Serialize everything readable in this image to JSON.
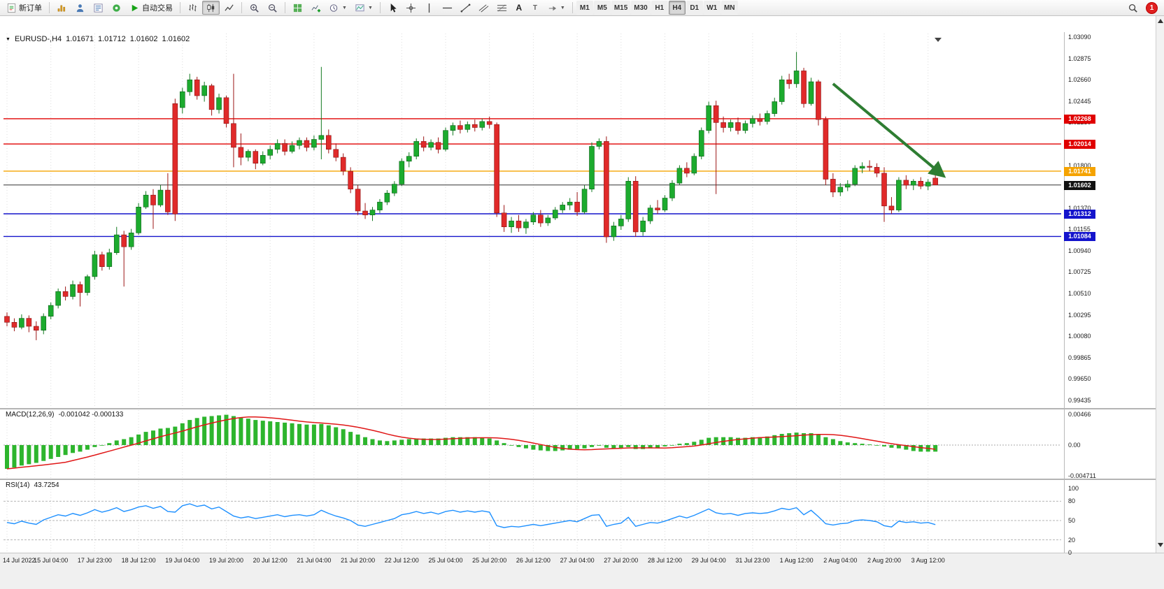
{
  "toolbar": {
    "new_order_label": "新订单",
    "autotrade_label": "自动交易",
    "text_tool_glyph": "A",
    "label_tool_glyph": "T",
    "notification_count": "1",
    "timeframes": [
      "M1",
      "M5",
      "M15",
      "M30",
      "H1",
      "H4",
      "D1",
      "W1",
      "MN"
    ],
    "active_timeframe": "H4"
  },
  "chart_header": {
    "symbol_period": "EURUSD-,H4",
    "open": "1.01671",
    "high": "1.01712",
    "low": "1.01602",
    "close": "1.01602"
  },
  "indicators": {
    "macd_name": "MACD(12,26,9)",
    "macd_values": "-0.001042 -0.000133",
    "rsi_name": "RSI(14)",
    "rsi_value": "43.7254"
  },
  "chart_data": {
    "type": "candlestick",
    "symbol": "EURUSD",
    "timeframe": "H4",
    "price_axis": {
      "max": 1.0309,
      "min": 0.99435,
      "ticks": [
        "1.03090",
        "1.02875",
        "1.02660",
        "1.02445",
        "1.02230",
        "1.02015",
        "1.01800",
        "1.01585",
        "1.01370",
        "1.01155",
        "1.00940",
        "1.00725",
        "1.00510",
        "1.00295",
        "1.00080",
        "0.99865",
        "0.99650",
        "0.99435"
      ]
    },
    "hlines": [
      {
        "price": 1.02268,
        "label": "1.02268",
        "color": "#e00000"
      },
      {
        "price": 1.02014,
        "label": "1.02014",
        "color": "#e00000"
      },
      {
        "price": 1.01741,
        "label": "1.01741",
        "color": "#f5a300"
      },
      {
        "price": 1.01312,
        "label": "1.01312",
        "color": "#1414cc"
      },
      {
        "price": 1.01084,
        "label": "1.01084",
        "color": "#1414cc"
      }
    ],
    "current_price": {
      "price": 1.01602,
      "label": "1.01602",
      "color": "#111111"
    },
    "time_labels": [
      "14 Jul 2022",
      "15 Jul 04:00",
      "17 Jul 23:00",
      "18 Jul 12:00",
      "19 Jul 04:00",
      "19 Jul 20:00",
      "20 Jul 12:00",
      "21 Jul 04:00",
      "21 Jul 20:00",
      "22 Jul 12:00",
      "25 Jul 04:00",
      "25 Jul 20:00",
      "26 Jul 12:00",
      "27 Jul 04:00",
      "27 Jul 20:00",
      "28 Jul 12:00",
      "29 Jul 04:00",
      "31 Jul 23:00",
      "1 Aug 12:00",
      "2 Aug 04:00",
      "2 Aug 20:00",
      "3 Aug 12:00"
    ],
    "candles": [
      [
        1.0028,
        1.0032,
        1.0018,
        1.0022
      ],
      [
        1.0022,
        1.0026,
        1.0013,
        1.0017
      ],
      [
        1.0017,
        1.003,
        1.0015,
        1.0026
      ],
      [
        1.0026,
        1.0029,
        1.0012,
        1.0018
      ],
      [
        1.0018,
        1.0023,
        1.0004,
        1.0014
      ],
      [
        1.0014,
        1.0031,
        1.001,
        1.0028
      ],
      [
        1.0028,
        1.0042,
        1.0025,
        1.0039
      ],
      [
        1.0039,
        1.0056,
        1.0036,
        1.0053
      ],
      [
        1.0053,
        1.0058,
        1.0044,
        1.0048
      ],
      [
        1.0048,
        1.0064,
        1.0045,
        1.006
      ],
      [
        1.006,
        1.0063,
        1.0038,
        1.0052
      ],
      [
        1.0052,
        1.007,
        1.0049,
        1.0068
      ],
      [
        1.0068,
        1.0094,
        1.0065,
        1.009
      ],
      [
        1.009,
        1.0093,
        1.0074,
        1.0078
      ],
      [
        1.0078,
        1.0096,
        1.0075,
        1.0092
      ],
      [
        1.0092,
        1.0118,
        1.009,
        1.011
      ],
      [
        1.011,
        1.0114,
        1.0058,
        1.0098
      ],
      [
        1.0098,
        1.0116,
        1.0095,
        1.0112
      ],
      [
        1.0112,
        1.0142,
        1.011,
        1.0138
      ],
      [
        1.0138,
        1.0154,
        1.0136,
        1.015
      ],
      [
        1.015,
        1.0156,
        1.0116,
        1.014
      ],
      [
        1.014,
        1.016,
        1.0138,
        1.0155
      ],
      [
        1.0155,
        1.0172,
        1.013,
        1.0133
      ],
      [
        1.0242,
        1.0247,
        1.0124,
        1.0131
      ],
      [
        1.0238,
        1.0258,
        1.0232,
        1.0254
      ],
      [
        1.0254,
        1.0272,
        1.025,
        1.0266
      ],
      [
        1.0266,
        1.0269,
        1.0246,
        1.025
      ],
      [
        1.025,
        1.0264,
        1.0244,
        1.026
      ],
      [
        1.026,
        1.0262,
        1.023,
        1.0236
      ],
      [
        1.0236,
        1.0252,
        1.0232,
        1.0248
      ],
      [
        1.0248,
        1.025,
        1.0218,
        1.0222
      ],
      [
        1.0222,
        1.0272,
        1.0178,
        1.0198
      ],
      [
        1.0198,
        1.0212,
        1.018,
        1.0188
      ],
      [
        1.0188,
        1.0196,
        1.0184,
        1.0194
      ],
      [
        1.0194,
        1.0196,
        1.0176,
        1.0182
      ],
      [
        1.0182,
        1.0194,
        1.018,
        1.019
      ],
      [
        1.019,
        1.02,
        1.0186,
        1.0196
      ],
      [
        1.0196,
        1.0206,
        1.0192,
        1.0202
      ],
      [
        1.0202,
        1.0206,
        1.019,
        1.0194
      ],
      [
        1.0194,
        1.0204,
        1.0192,
        1.02
      ],
      [
        1.02,
        1.0208,
        1.0196,
        1.0205
      ],
      [
        1.0205,
        1.0208,
        1.0194,
        1.0198
      ],
      [
        1.0198,
        1.021,
        1.0195,
        1.0206
      ],
      [
        1.0206,
        1.0279,
        1.0186,
        1.021
      ],
      [
        1.021,
        1.0216,
        1.0192,
        1.0196
      ],
      [
        1.0196,
        1.0202,
        1.0184,
        1.0188
      ],
      [
        1.0188,
        1.0192,
        1.017,
        1.0174
      ],
      [
        1.0174,
        1.0178,
        1.0152,
        1.0156
      ],
      [
        1.0156,
        1.016,
        1.013,
        1.0134
      ],
      [
        1.0134,
        1.0142,
        1.0126,
        1.013
      ],
      [
        1.013,
        1.0138,
        1.0124,
        1.0135
      ],
      [
        1.0135,
        1.0146,
        1.0132,
        1.0143
      ],
      [
        1.0143,
        1.0155,
        1.014,
        1.0152
      ],
      [
        1.0152,
        1.0164,
        1.0149,
        1.0161
      ],
      [
        1.0161,
        1.0187,
        1.0159,
        1.0184
      ],
      [
        1.0184,
        1.0193,
        1.0178,
        1.0189
      ],
      [
        1.0189,
        1.0207,
        1.0186,
        1.0204
      ],
      [
        1.0204,
        1.0209,
        1.0194,
        1.0198
      ],
      [
        1.0198,
        1.0206,
        1.0195,
        1.0203
      ],
      [
        1.0203,
        1.0208,
        1.0192,
        1.0196
      ],
      [
        1.0196,
        1.0218,
        1.0194,
        1.0215
      ],
      [
        1.0215,
        1.0223,
        1.021,
        1.022
      ],
      [
        1.022,
        1.0225,
        1.0212,
        1.0216
      ],
      [
        1.0216,
        1.0224,
        1.0213,
        1.0221
      ],
      [
        1.0221,
        1.0226,
        1.0214,
        1.0218
      ],
      [
        1.0218,
        1.0227,
        1.0215,
        1.0224
      ],
      [
        1.0224,
        1.0229,
        1.0217,
        1.0221
      ],
      [
        1.0221,
        1.0223,
        1.0128,
        1.0132
      ],
      [
        1.0132,
        1.014,
        1.0113,
        1.0118
      ],
      [
        1.0118,
        1.0128,
        1.0112,
        1.0124
      ],
      [
        1.0124,
        1.013,
        1.0113,
        1.0117
      ],
      [
        1.0117,
        1.0126,
        1.0111,
        1.0123
      ],
      [
        1.0123,
        1.0133,
        1.012,
        1.013
      ],
      [
        1.013,
        1.0135,
        1.0118,
        1.0122
      ],
      [
        1.0122,
        1.013,
        1.0119,
        1.0127
      ],
      [
        1.0127,
        1.0138,
        1.0125,
        1.0135
      ],
      [
        1.0135,
        1.0143,
        1.0132,
        1.014
      ],
      [
        1.014,
        1.0147,
        1.0135,
        1.0143
      ],
      [
        1.0143,
        1.0153,
        1.0129,
        1.0133
      ],
      [
        1.0133,
        1.016,
        1.0131,
        1.0156
      ],
      [
        1.0156,
        1.0203,
        1.0153,
        1.0199
      ],
      [
        1.0199,
        1.0207,
        1.0196,
        1.0204
      ],
      [
        1.0204,
        1.0209,
        1.0102,
        1.0108
      ],
      [
        1.0108,
        1.0123,
        1.0104,
        1.0119
      ],
      [
        1.0119,
        1.013,
        1.0115,
        1.0126
      ],
      [
        1.0126,
        1.0168,
        1.0123,
        1.0164
      ],
      [
        1.0164,
        1.0169,
        1.0108,
        1.0113
      ],
      [
        1.0113,
        1.0128,
        1.0109,
        1.0124
      ],
      [
        1.0124,
        1.014,
        1.0121,
        1.0137
      ],
      [
        1.0137,
        1.0145,
        1.0131,
        1.0135
      ],
      [
        1.0135,
        1.015,
        1.0133,
        1.0147
      ],
      [
        1.0147,
        1.0165,
        1.0144,
        1.0162
      ],
      [
        1.0162,
        1.018,
        1.016,
        1.0177
      ],
      [
        1.0177,
        1.0183,
        1.0168,
        1.0172
      ],
      [
        1.0172,
        1.0192,
        1.017,
        1.0189
      ],
      [
        1.0189,
        1.0218,
        1.0186,
        1.0215
      ],
      [
        1.0215,
        1.0244,
        1.0212,
        1.024
      ],
      [
        1.024,
        1.0245,
        1.0151,
        1.0223
      ],
      [
        1.0223,
        1.0229,
        1.0213,
        1.0218
      ],
      [
        1.0218,
        1.0226,
        1.0214,
        1.0223
      ],
      [
        1.0223,
        1.0228,
        1.0211,
        1.0215
      ],
      [
        1.0215,
        1.0225,
        1.0212,
        1.0222
      ],
      [
        1.0222,
        1.023,
        1.0218,
        1.0227
      ],
      [
        1.0227,
        1.0232,
        1.022,
        1.0224
      ],
      [
        1.0224,
        1.0235,
        1.0221,
        1.0232
      ],
      [
        1.0232,
        1.0248,
        1.0229,
        1.0244
      ],
      [
        1.0244,
        1.027,
        1.0241,
        1.0266
      ],
      [
        1.0266,
        1.0272,
        1.0257,
        1.0262
      ],
      [
        1.0262,
        1.0294,
        1.0258,
        1.0275
      ],
      [
        1.0275,
        1.0278,
        1.0238,
        1.0242
      ],
      [
        1.0242,
        1.0268,
        1.024,
        1.0264
      ],
      [
        1.0264,
        1.0266,
        1.022,
        1.0226
      ],
      [
        1.0226,
        1.0229,
        1.016,
        1.0166
      ],
      [
        1.0166,
        1.0172,
        1.0148,
        1.0153
      ],
      [
        1.0153,
        1.0162,
        1.0149,
        1.0158
      ],
      [
        1.0158,
        1.0165,
        1.0154,
        1.0161
      ],
      [
        1.0161,
        1.018,
        1.0159,
        1.0177
      ],
      [
        1.0177,
        1.0183,
        1.0172,
        1.0179
      ],
      [
        1.0179,
        1.0185,
        1.0174,
        1.0178
      ],
      [
        1.0178,
        1.0182,
        1.0168,
        1.0172
      ],
      [
        1.0172,
        1.0178,
        1.0123,
        1.0139
      ],
      [
        1.0139,
        1.0148,
        1.0131,
        1.0135
      ],
      [
        1.0135,
        1.0168,
        1.0133,
        1.0165
      ],
      [
        1.0165,
        1.017,
        1.0156,
        1.016
      ],
      [
        1.016,
        1.0166,
        1.0155,
        1.0164
      ],
      [
        1.0164,
        1.0168,
        1.0156,
        1.0159
      ],
      [
        1.0159,
        1.0166,
        1.0155,
        1.0163
      ],
      [
        1.01671,
        1.01712,
        1.01602,
        1.01602
      ]
    ],
    "macd": {
      "axis_labels": [
        "0.00466",
        "0.00",
        "-0.004711"
      ],
      "hist": [
        -0.0036,
        -0.0034,
        -0.0031,
        -0.0029,
        -0.0027,
        -0.0024,
        -0.0021,
        -0.0018,
        -0.0015,
        -0.0012,
        -0.001,
        -0.0007,
        -0.0003,
        0.0,
        0.0003,
        0.0007,
        0.0009,
        0.0012,
        0.0016,
        0.002,
        0.0022,
        0.0025,
        0.0026,
        0.0028,
        0.0033,
        0.0038,
        0.0041,
        0.0043,
        0.0044,
        0.0045,
        0.0046,
        0.0044,
        0.0042,
        0.004,
        0.0038,
        0.0037,
        0.0036,
        0.0035,
        0.0034,
        0.0033,
        0.0032,
        0.0031,
        0.0031,
        0.0032,
        0.003,
        0.0027,
        0.0024,
        0.002,
        0.0016,
        0.0012,
        0.0009,
        0.0007,
        0.0006,
        0.0007,
        0.0008,
        0.0009,
        0.001,
        0.001,
        0.001,
        0.001,
        0.0011,
        0.0012,
        0.0012,
        0.0012,
        0.0012,
        0.0011,
        0.001,
        0.0007,
        0.0003,
        0.0,
        -0.0003,
        -0.0005,
        -0.0007,
        -0.0008,
        -0.0009,
        -0.0009,
        -0.0008,
        -0.0007,
        -0.0006,
        -0.0005,
        -0.0003,
        -0.0001,
        -0.0004,
        -0.0005,
        -0.0005,
        -0.0003,
        -0.0006,
        -0.0006,
        -0.0005,
        -0.0004,
        -0.0002,
        0.0,
        0.0002,
        0.0003,
        0.0005,
        0.0008,
        0.0011,
        0.0012,
        0.0012,
        0.0012,
        0.0011,
        0.0011,
        0.0012,
        0.0012,
        0.0013,
        0.0015,
        0.0017,
        0.0018,
        0.0019,
        0.0018,
        0.0018,
        0.0016,
        0.0012,
        0.0009,
        0.0006,
        0.0004,
        0.0003,
        0.0002,
        0.0001,
        0.0,
        -0.0002,
        -0.0004,
        -0.0005,
        -0.0007,
        -0.0009,
        -0.001,
        -0.001,
        -0.001
      ]
    },
    "rsi": {
      "levels": [
        80,
        50,
        20
      ],
      "axis_labels": [
        "100",
        "80",
        "50",
        "20",
        "0"
      ],
      "values": [
        47,
        45,
        49,
        46,
        44,
        51,
        55,
        59,
        57,
        61,
        58,
        62,
        67,
        63,
        66,
        70,
        64,
        67,
        71,
        73,
        69,
        72,
        64,
        63,
        73,
        76,
        72,
        74,
        68,
        71,
        64,
        57,
        54,
        56,
        53,
        55,
        57,
        59,
        56,
        58,
        59,
        57,
        59,
        66,
        61,
        57,
        54,
        50,
        43,
        41,
        44,
        47,
        50,
        53,
        59,
        61,
        64,
        61,
        63,
        60,
        64,
        66,
        63,
        65,
        63,
        65,
        63,
        42,
        39,
        41,
        40,
        42,
        44,
        42,
        44,
        46,
        48,
        50,
        48,
        53,
        58,
        59,
        41,
        44,
        46,
        55,
        41,
        44,
        47,
        46,
        49,
        53,
        57,
        54,
        58,
        63,
        68,
        62,
        60,
        61,
        58,
        61,
        62,
        61,
        62,
        65,
        69,
        67,
        70,
        59,
        66,
        56,
        45,
        43,
        45,
        46,
        50,
        51,
        50,
        48,
        42,
        40,
        49,
        47,
        48,
        46,
        47,
        43.7
      ]
    },
    "annotations": [
      {
        "type": "trend-arrow",
        "from_index": 113,
        "from_price": 1.0262,
        "to_index": 128,
        "to_price": 1.017,
        "color": "#2e7d32",
        "width": 4
      }
    ]
  }
}
